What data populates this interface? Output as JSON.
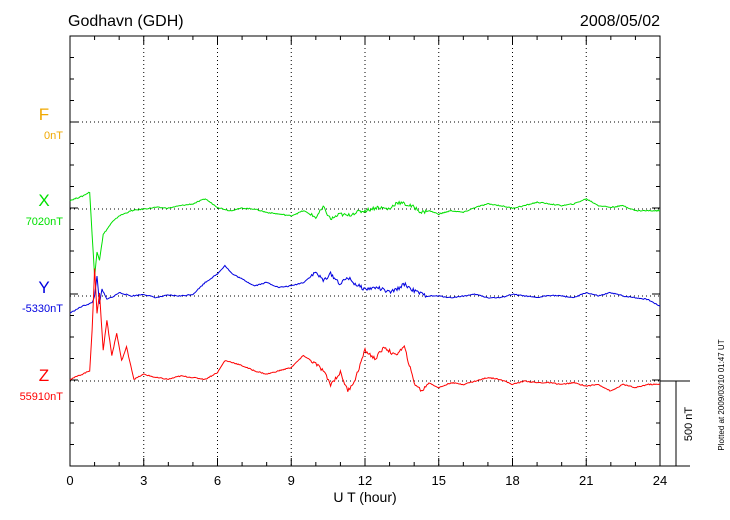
{
  "header": {
    "station": "Godhavn (GDH)",
    "date": "2008/05/02"
  },
  "footer_note": "Plotted at 2009/03/10 01:47 UT",
  "chart_data": {
    "type": "line",
    "xlabel": "U T (hour)",
    "xlim": [
      0,
      24
    ],
    "xticks": [
      "0",
      "3",
      "6",
      "9",
      "12",
      "15",
      "18",
      "21",
      "24"
    ],
    "scale_bar_label": "500 nT",
    "scale_bar_nT": 500,
    "grid": true,
    "series": [
      {
        "name": "F",
        "baseline_label": "0nT",
        "color": "#f0a800",
        "x": [],
        "y": []
      },
      {
        "name": "X",
        "baseline_label": "7020nT",
        "color": "#00e000",
        "x": [
          0,
          0.5,
          0.8,
          0.9,
          1.0,
          1.1,
          1.2,
          1.35,
          1.5,
          1.7,
          2.0,
          2.5,
          3.0,
          3.5,
          4.0,
          4.5,
          5.0,
          5.5,
          6.0,
          6.5,
          7.0,
          7.5,
          8.0,
          8.5,
          9.0,
          9.5,
          10.0,
          10.3,
          10.6,
          11.0,
          11.3,
          11.6,
          12.0,
          12.5,
          13.0,
          13.3,
          13.6,
          14.0,
          14.3,
          14.6,
          15.0,
          15.5,
          16.0,
          16.5,
          17.0,
          17.5,
          18.0,
          18.5,
          19.0,
          19.5,
          20.0,
          20.5,
          21.0,
          21.5,
          22.0,
          22.5,
          23.0,
          23.5,
          24.0
        ],
        "y": [
          50,
          75,
          100,
          -150,
          -400,
          -250,
          -300,
          -150,
          -120,
          -80,
          -40,
          -10,
          0,
          10,
          5,
          20,
          30,
          60,
          10,
          -10,
          5,
          0,
          -20,
          -30,
          -40,
          -10,
          -50,
          10,
          -60,
          -30,
          -40,
          -20,
          -10,
          10,
          0,
          40,
          30,
          10,
          -20,
          -10,
          -30,
          -10,
          -20,
          10,
          30,
          20,
          5,
          20,
          40,
          30,
          20,
          30,
          60,
          20,
          10,
          20,
          -10,
          -10,
          -10
        ]
      },
      {
        "name": "Y",
        "baseline_label": "-5330nT",
        "color": "#0000e0",
        "x": [
          0,
          0.5,
          0.9,
          1.0,
          1.1,
          1.2,
          1.3,
          1.5,
          1.8,
          2.0,
          2.5,
          3.0,
          3.5,
          4.0,
          4.5,
          5.0,
          5.5,
          6.0,
          6.3,
          6.6,
          7.0,
          7.5,
          8.0,
          8.5,
          9.0,
          9.5,
          10.0,
          10.3,
          10.6,
          11.0,
          11.3,
          11.6,
          12.0,
          12.5,
          13.0,
          13.3,
          13.6,
          14.0,
          14.5,
          15.0,
          15.5,
          16.0,
          16.5,
          17.0,
          17.5,
          18.0,
          18.5,
          19.0,
          19.5,
          20.0,
          20.5,
          21.0,
          21.5,
          22.0,
          22.5,
          23.0,
          23.5,
          24.0
        ],
        "y": [
          -100,
          -60,
          -40,
          0,
          120,
          -50,
          40,
          -20,
          0,
          20,
          0,
          10,
          -10,
          5,
          0,
          10,
          80,
          130,
          180,
          130,
          100,
          60,
          80,
          50,
          60,
          80,
          140,
          90,
          130,
          70,
          110,
          70,
          40,
          50,
          20,
          40,
          70,
          30,
          0,
          0,
          -10,
          0,
          10,
          -10,
          -10,
          10,
          0,
          -10,
          5,
          0,
          -10,
          20,
          0,
          20,
          0,
          -10,
          -20,
          -60
        ]
      },
      {
        "name": "Z",
        "baseline_label": "55910nT",
        "color": "#ff0000",
        "x": [
          0,
          0.5,
          0.8,
          0.9,
          1.0,
          1.1,
          1.2,
          1.35,
          1.5,
          1.7,
          1.9,
          2.1,
          2.3,
          2.6,
          3.0,
          3.5,
          4.0,
          4.5,
          5.0,
          5.5,
          6.0,
          6.3,
          6.6,
          7.0,
          7.5,
          8.0,
          8.5,
          9.0,
          9.5,
          10.0,
          10.3,
          10.6,
          11.0,
          11.3,
          11.6,
          12.0,
          12.4,
          12.8,
          13.2,
          13.6,
          14.0,
          14.3,
          14.6,
          15.0,
          15.5,
          16.0,
          16.5,
          17.0,
          17.5,
          18.0,
          18.5,
          19.0,
          19.5,
          20.0,
          20.5,
          21.0,
          21.5,
          22.0,
          22.5,
          23.0,
          23.5,
          24.0
        ],
        "y": [
          10,
          40,
          60,
          300,
          660,
          400,
          520,
          180,
          360,
          150,
          280,
          120,
          200,
          10,
          40,
          20,
          10,
          30,
          20,
          10,
          50,
          120,
          110,
          90,
          60,
          40,
          60,
          80,
          150,
          100,
          60,
          -20,
          50,
          -60,
          10,
          180,
          130,
          200,
          150,
          200,
          -10,
          -60,
          -10,
          -40,
          -10,
          -20,
          0,
          20,
          10,
          -20,
          0,
          -10,
          -10,
          -20,
          -10,
          -30,
          -20,
          -60,
          -20,
          -40,
          -20,
          -20
        ]
      }
    ]
  }
}
